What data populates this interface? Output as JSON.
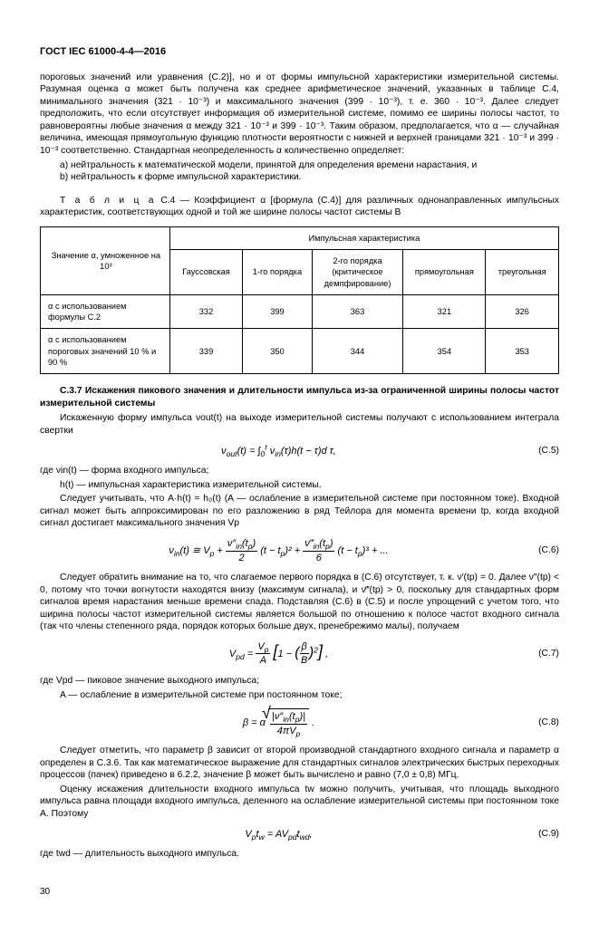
{
  "header": "ГОСТ IEC 61000-4-4—2016",
  "para1": "пороговых значений или уравнения (С.2)], но и от формы импульсной характеристики измерительной системы. Разумная оценка α может быть получена как среднее арифметическое значений, указанных в таблице С.4, минимального значения (321 · 10⁻³) и максимального значения (399 · 10⁻³), т. е. 360 · 10⁻³. Далее следует предположить, что если отсутствует информация об измерительной системе, помимо ее ширины полосы частот, то равновероятны любые значения α между 321 · 10⁻³ и 399 · 10⁻³. Таким образом, предполагается, что α — случайная величина, имеющая прямоугольную функцию плотности вероятности с нижней и верхней границами 321 · 10⁻³ и 399 · 10⁻³ соответственно. Стандартная неопределенность α количественно определяет:",
  "list_a": "a) нейтральность к математической модели, принятой для определения времени нарастания, и",
  "list_b": "b) нейтральность к форме импульсной характеристики.",
  "table_caption_prefix": "Т а б л и ц а",
  "table_caption_rest": " С.4 — Коэффициент α [формула (С.4)] для различных однонаправленных импульсных характеристик, соответствующих одной и той же ширине полосы частот системы B",
  "table": {
    "col_label": "Значение α, умноженное на 10³",
    "group_header": "Импульсная характеристика",
    "cols": [
      "Гауссовская",
      "1-го порядка",
      "2-го порядка (критическое демпфирование)",
      "прямоугольная",
      "треугольная"
    ],
    "rows": [
      {
        "label": "α с использованием формулы С.2",
        "vals": [
          "332",
          "399",
          "363",
          "321",
          "326"
        ]
      },
      {
        "label": "α с использованием пороговых значений 10 % и 90 %",
        "vals": [
          "339",
          "350",
          "344",
          "354",
          "353"
        ]
      }
    ]
  },
  "section_c37": "С.3.7 Искажения пикового значения и длительности импульса из-за ограниченной ширины полосы частот измерительной системы",
  "c37_p1": "Искаженную форму импульса νout(t) на выходе измерительной системы получают с использованием интеграла свертки",
  "formula_c5": "ν<sub>out</sub>(t) = ∫<sub>0</sub><sup>t</sup> ν<sub>in</sub>(τ)h(t − τ)d τ,",
  "num_c5": "(С.5)",
  "c37_p2a": "где νin(t) — форма входного импульса;",
  "c37_p2b": "h(t) — импульсная характеристика измерительной системы.",
  "c37_p3": "Следует учитывать, что A·h(t) = h₀(t) (A — ослабление в измерительной системе при постоянном токе). Входной сигнал может быть аппроксимирован по его разложению в ряд Тейлора для момента времени tp, когда входной сигнал достигает максимального значения Vp",
  "formula_c6": "ν<sub>in</sub>(t) ≅ V<sub>p</sub> + <span style='display:inline-block;vertical-align:middle;'><span style='display:block;border-bottom:1px solid #000;padding:0 2px;'>ν″<sub>in</sub>(t<sub>p</sub>)</span><span style='display:block;text-align:center;'>2</span></span> (t − t<sub>p</sub>)² + <span style='display:inline-block;vertical-align:middle;'><span style='display:block;border-bottom:1px solid #000;padding:0 2px;'>ν‴<sub>in</sub>(t<sub>p</sub>)</span><span style='display:block;text-align:center;'>6</span></span> (t − t<sub>p</sub>)³ + ...",
  "num_c6": "(С.6)",
  "c37_p4": "Следует обратить внимание на то, что слагаемое первого порядка в (С.6) отсутствует, т. к. ν′(tp) = 0. Далее ν″(tp) < 0, потому что точки вогнутости находятся внизу (максимум сигнала), и ν‴(tp) > 0, поскольку для стандартных форм сигналов время нарастания меньше времени спада. Подставляя (С.6) в (С.5) и после упрощений с учетом того, что ширина полосы частот измерительной системы является большой по отношению к полосе частот входного сигнала (так что члены степенного ряда, порядок которых больше двух, пренебрежимо малы), получаем",
  "formula_c7": "V<sub>pd</sub> = <span style='display:inline-block;vertical-align:middle;'><span style='display:block;border-bottom:1px solid #000;padding:0 2px;text-align:center;'>V<sub>p</sub></span><span style='display:block;text-align:center;'>A</span></span> <span style='font-size:18px;'>[</span>1 − <span style='font-size:16px;'>(</span><span style='display:inline-block;vertical-align:middle;'><span style='display:block;border-bottom:1px solid #000;padding:0 2px;text-align:center;'>β</span><span style='display:block;text-align:center;'>B</span></span><span style='font-size:16px;'>)</span><sup>2</sup><span style='font-size:18px;'>]</span> ,",
  "num_c7": "(С.7)",
  "c37_p5a": "где Vpd — пиковое значение выходного импульса;",
  "c37_p5b": "A — ослабление в измерительной системе при постоянном токе;",
  "formula_c8": "β = α <span style='display:inline-block;vertical-align:middle;position:relative;'><span style='position:absolute;left:-7px;top:-6px;font-size:18px;font-style:normal;'>√</span><span style='border-top:1px solid #000;display:inline-block;padding:1px 2px 0;'><span style='display:inline-block;vertical-align:middle;'><span style='display:block;border-bottom:1px solid #000;padding:0 2px;text-align:center;'>|ν″<sub>in</sub>(t<sub>p</sub>)|</span><span style='display:block;text-align:center;'>4πV<sub>p</sub></span></span></span></span> .",
  "num_c8": "(С.8)",
  "c37_p6": "Следует отметить, что параметр β зависит от второй производной стандартного входного сигнала и параметр α определен в С.3.6. Так как математическое выражение для стандартных сигналов электрических быстрых переходных процессов (пачек) приведено в 6.2.2, значение β может быть вычислено и равно (7,0 ± 0,8) МГц.",
  "c37_p7": "Оценку искажения длительности входного импульса tw можно получить, учитывая, что площадь выходного импульса равна площади входного импульса, деленного на ослабление измерительной системы при постоянном токе А. Поэтому",
  "formula_c9": "V<sub>p</sub>t<sub>w</sub> = AV<sub>pd</sub>t<sub>wd</sub>,",
  "num_c9": "(С.9)",
  "c37_p8": "где twd — длительность выходного импульса.",
  "page_num": "30"
}
